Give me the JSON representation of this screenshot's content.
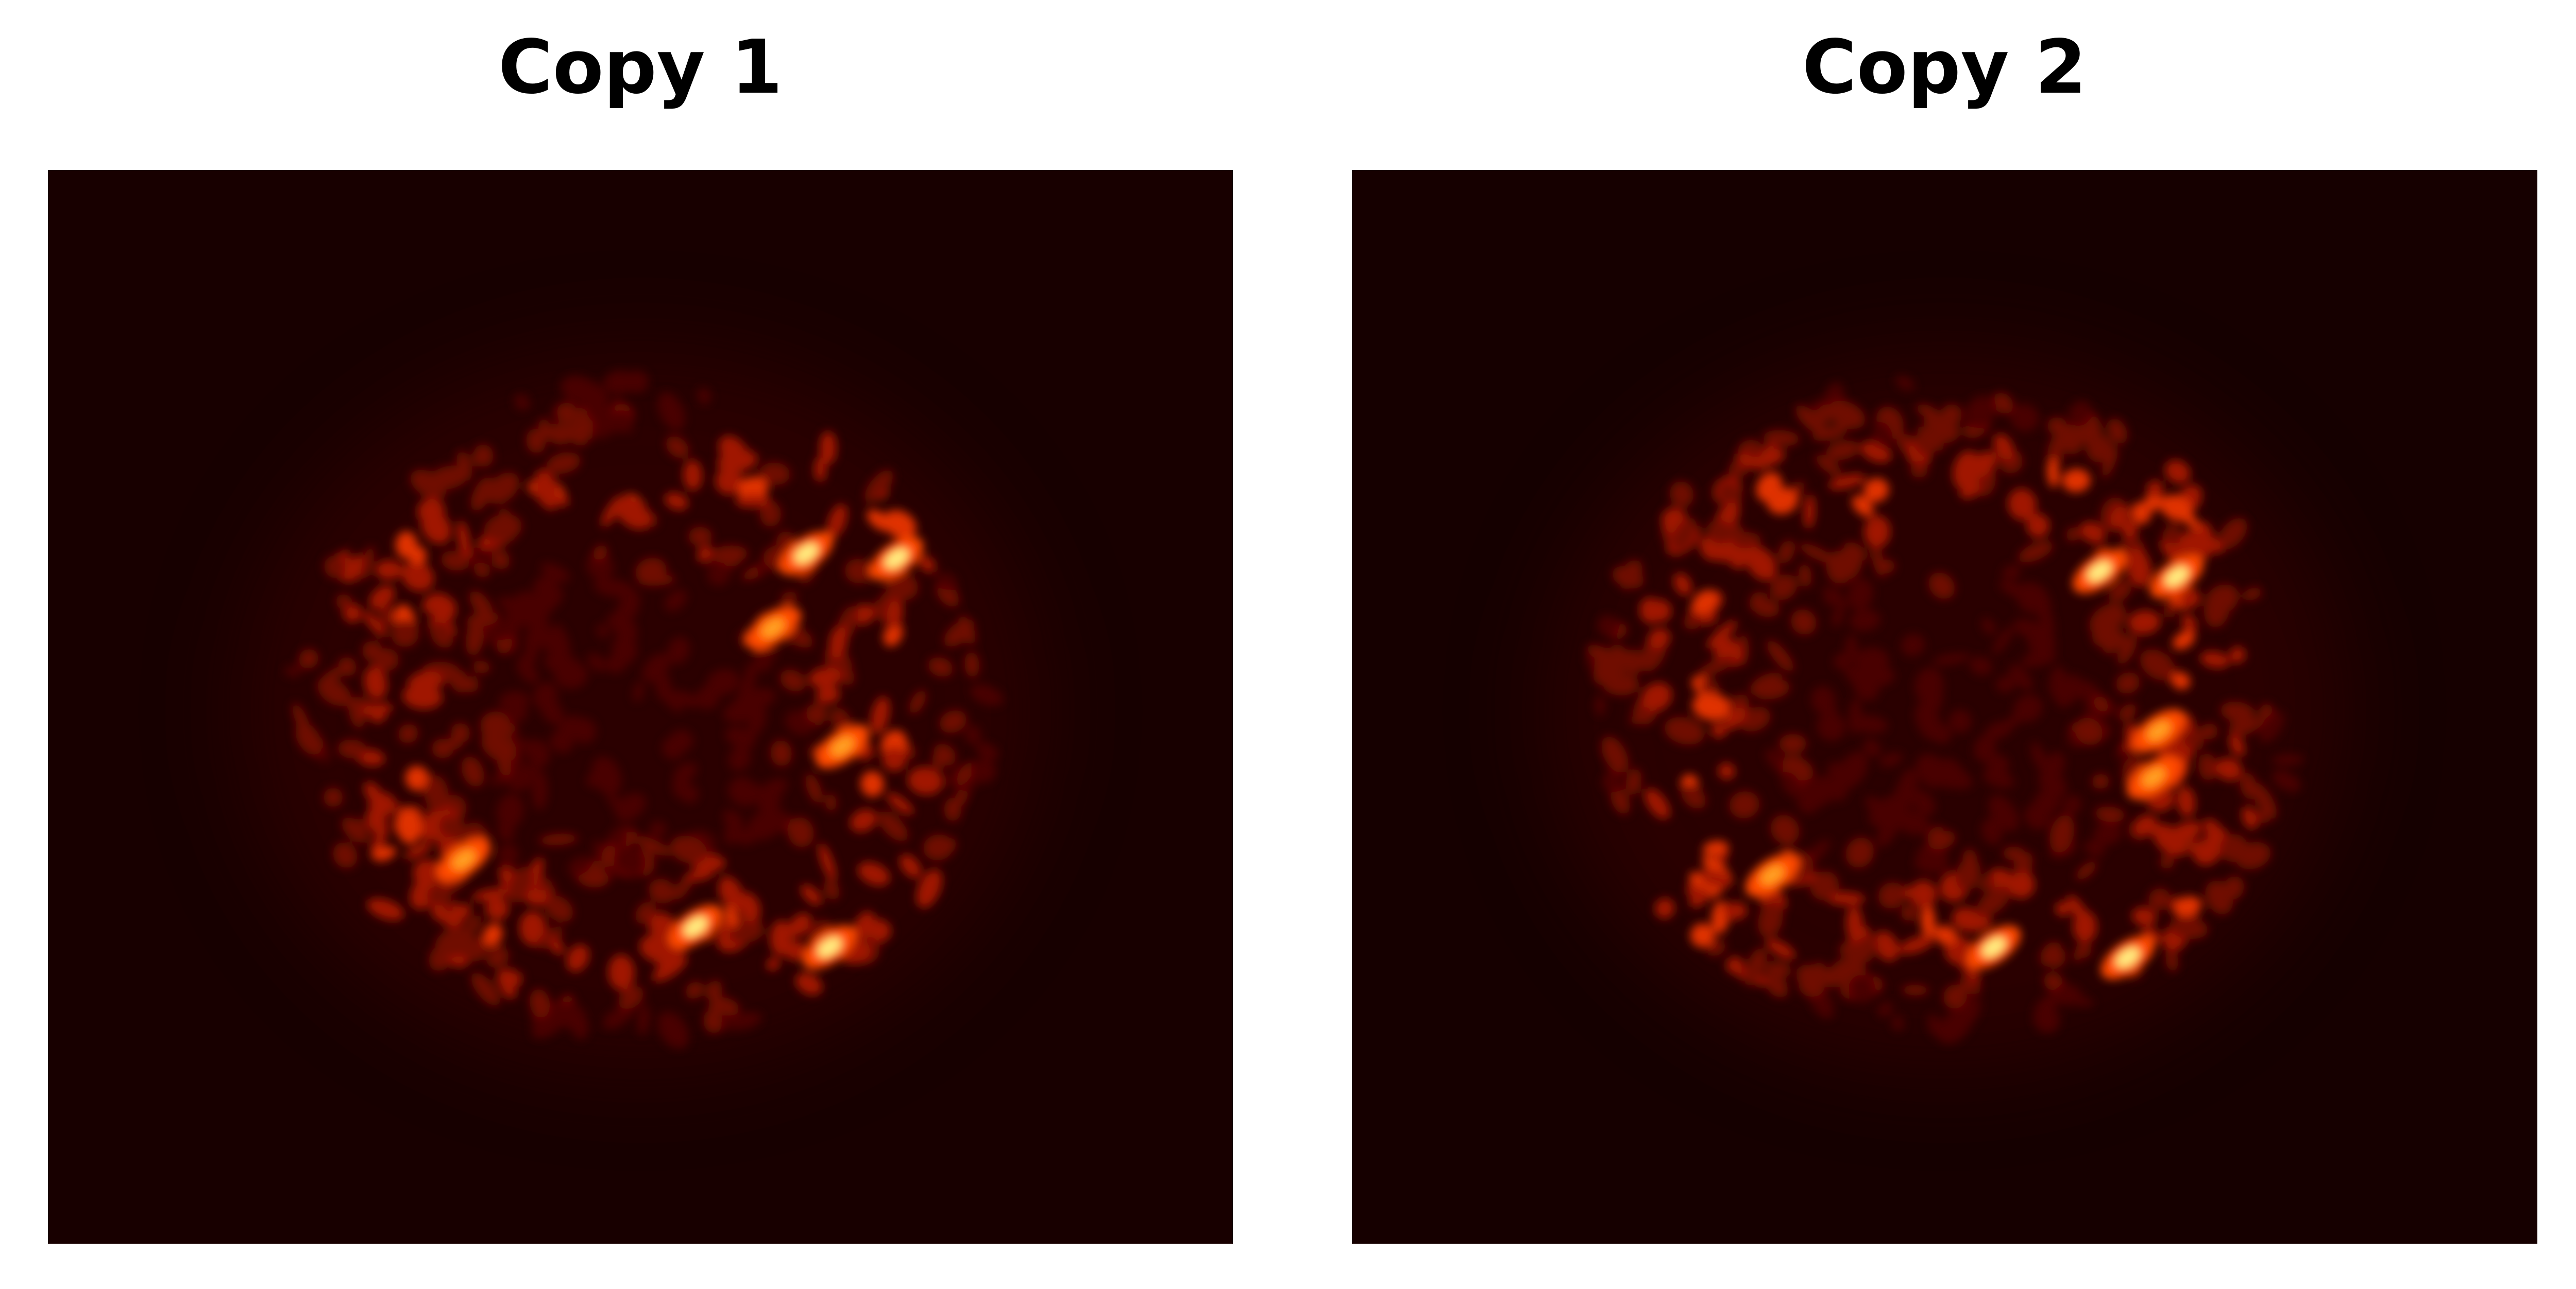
{
  "panels": [
    {
      "title": "Copy 1"
    },
    {
      "title": "Copy 2"
    }
  ]
}
